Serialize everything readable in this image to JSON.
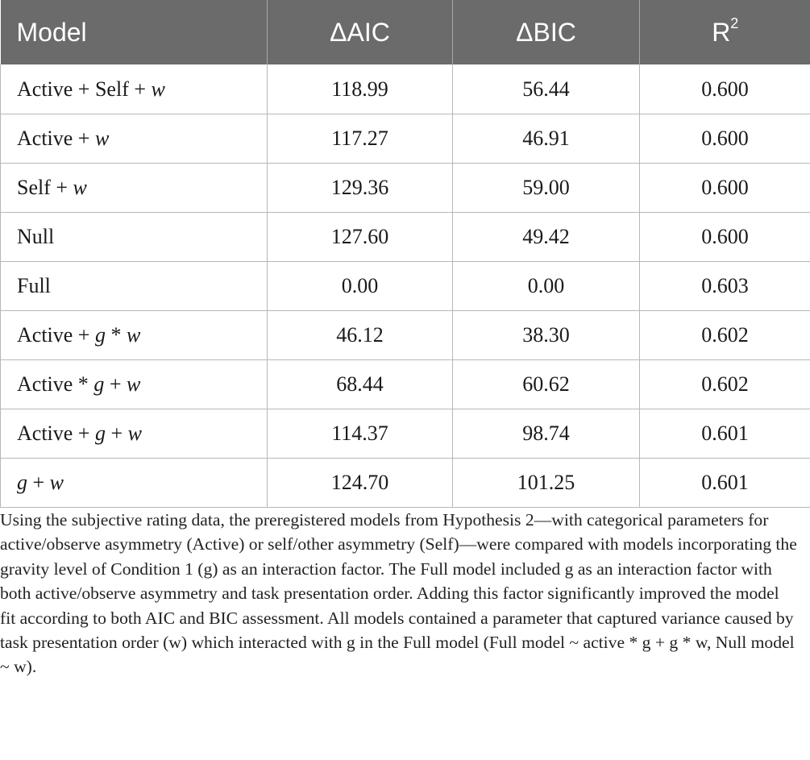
{
  "table": {
    "headers": {
      "model": "Model",
      "daic": "ΔAIC",
      "dbic": "ΔBIC",
      "r2_base": "R",
      "r2_sup": "2"
    },
    "rows": [
      {
        "model": [
          {
            "t": "Active + Self + ",
            "i": false
          },
          {
            "t": "w",
            "i": true
          }
        ],
        "daic": "118.99",
        "dbic": "56.44",
        "r2": "0.600"
      },
      {
        "model": [
          {
            "t": "Active + ",
            "i": false
          },
          {
            "t": "w",
            "i": true
          }
        ],
        "daic": "117.27",
        "dbic": "46.91",
        "r2": "0.600"
      },
      {
        "model": [
          {
            "t": "Self + ",
            "i": false
          },
          {
            "t": "w",
            "i": true
          }
        ],
        "daic": "129.36",
        "dbic": "59.00",
        "r2": "0.600"
      },
      {
        "model": [
          {
            "t": "Null",
            "i": false
          }
        ],
        "daic": "127.60",
        "dbic": "49.42",
        "r2": "0.600"
      },
      {
        "model": [
          {
            "t": "Full",
            "i": false
          }
        ],
        "daic": "0.00",
        "dbic": "0.00",
        "r2": "0.603"
      },
      {
        "model": [
          {
            "t": "Active + ",
            "i": false
          },
          {
            "t": "g",
            "i": true
          },
          {
            "t": " * ",
            "i": false
          },
          {
            "t": "w",
            "i": true
          }
        ],
        "daic": "46.12",
        "dbic": "38.30",
        "r2": "0.602"
      },
      {
        "model": [
          {
            "t": "Active * ",
            "i": false
          },
          {
            "t": "g",
            "i": true
          },
          {
            "t": " + ",
            "i": false
          },
          {
            "t": "w",
            "i": true
          }
        ],
        "daic": "68.44",
        "dbic": "60.62",
        "r2": "0.602"
      },
      {
        "model": [
          {
            "t": "Active + ",
            "i": false
          },
          {
            "t": "g",
            "i": true
          },
          {
            "t": " + ",
            "i": false
          },
          {
            "t": "w",
            "i": true
          }
        ],
        "daic": "114.37",
        "dbic": "98.74",
        "r2": "0.601"
      },
      {
        "model": [
          {
            "t": "g",
            "i": true
          },
          {
            "t": " + ",
            "i": false
          },
          {
            "t": "w",
            "i": true
          }
        ],
        "daic": "124.70",
        "dbic": "101.25",
        "r2": "0.601"
      }
    ]
  },
  "caption": "Using the subjective rating data, the preregistered models from Hypothesis 2—with categorical parameters for active/observe asymmetry (Active) or self/other asymmetry (Self)—were compared with models incorporating the gravity level of Condition 1 (g) as an interaction factor. The Full model included g as an interaction factor with both active/observe asymmetry and task presentation order. Adding this factor significantly improved the model fit according to both AIC and BIC assessment. All models contained a parameter that captured variance caused by task presentation order (w) which interacted with g in the Full model (Full model ~ active * g + g * w, Null model ~ w)."
}
